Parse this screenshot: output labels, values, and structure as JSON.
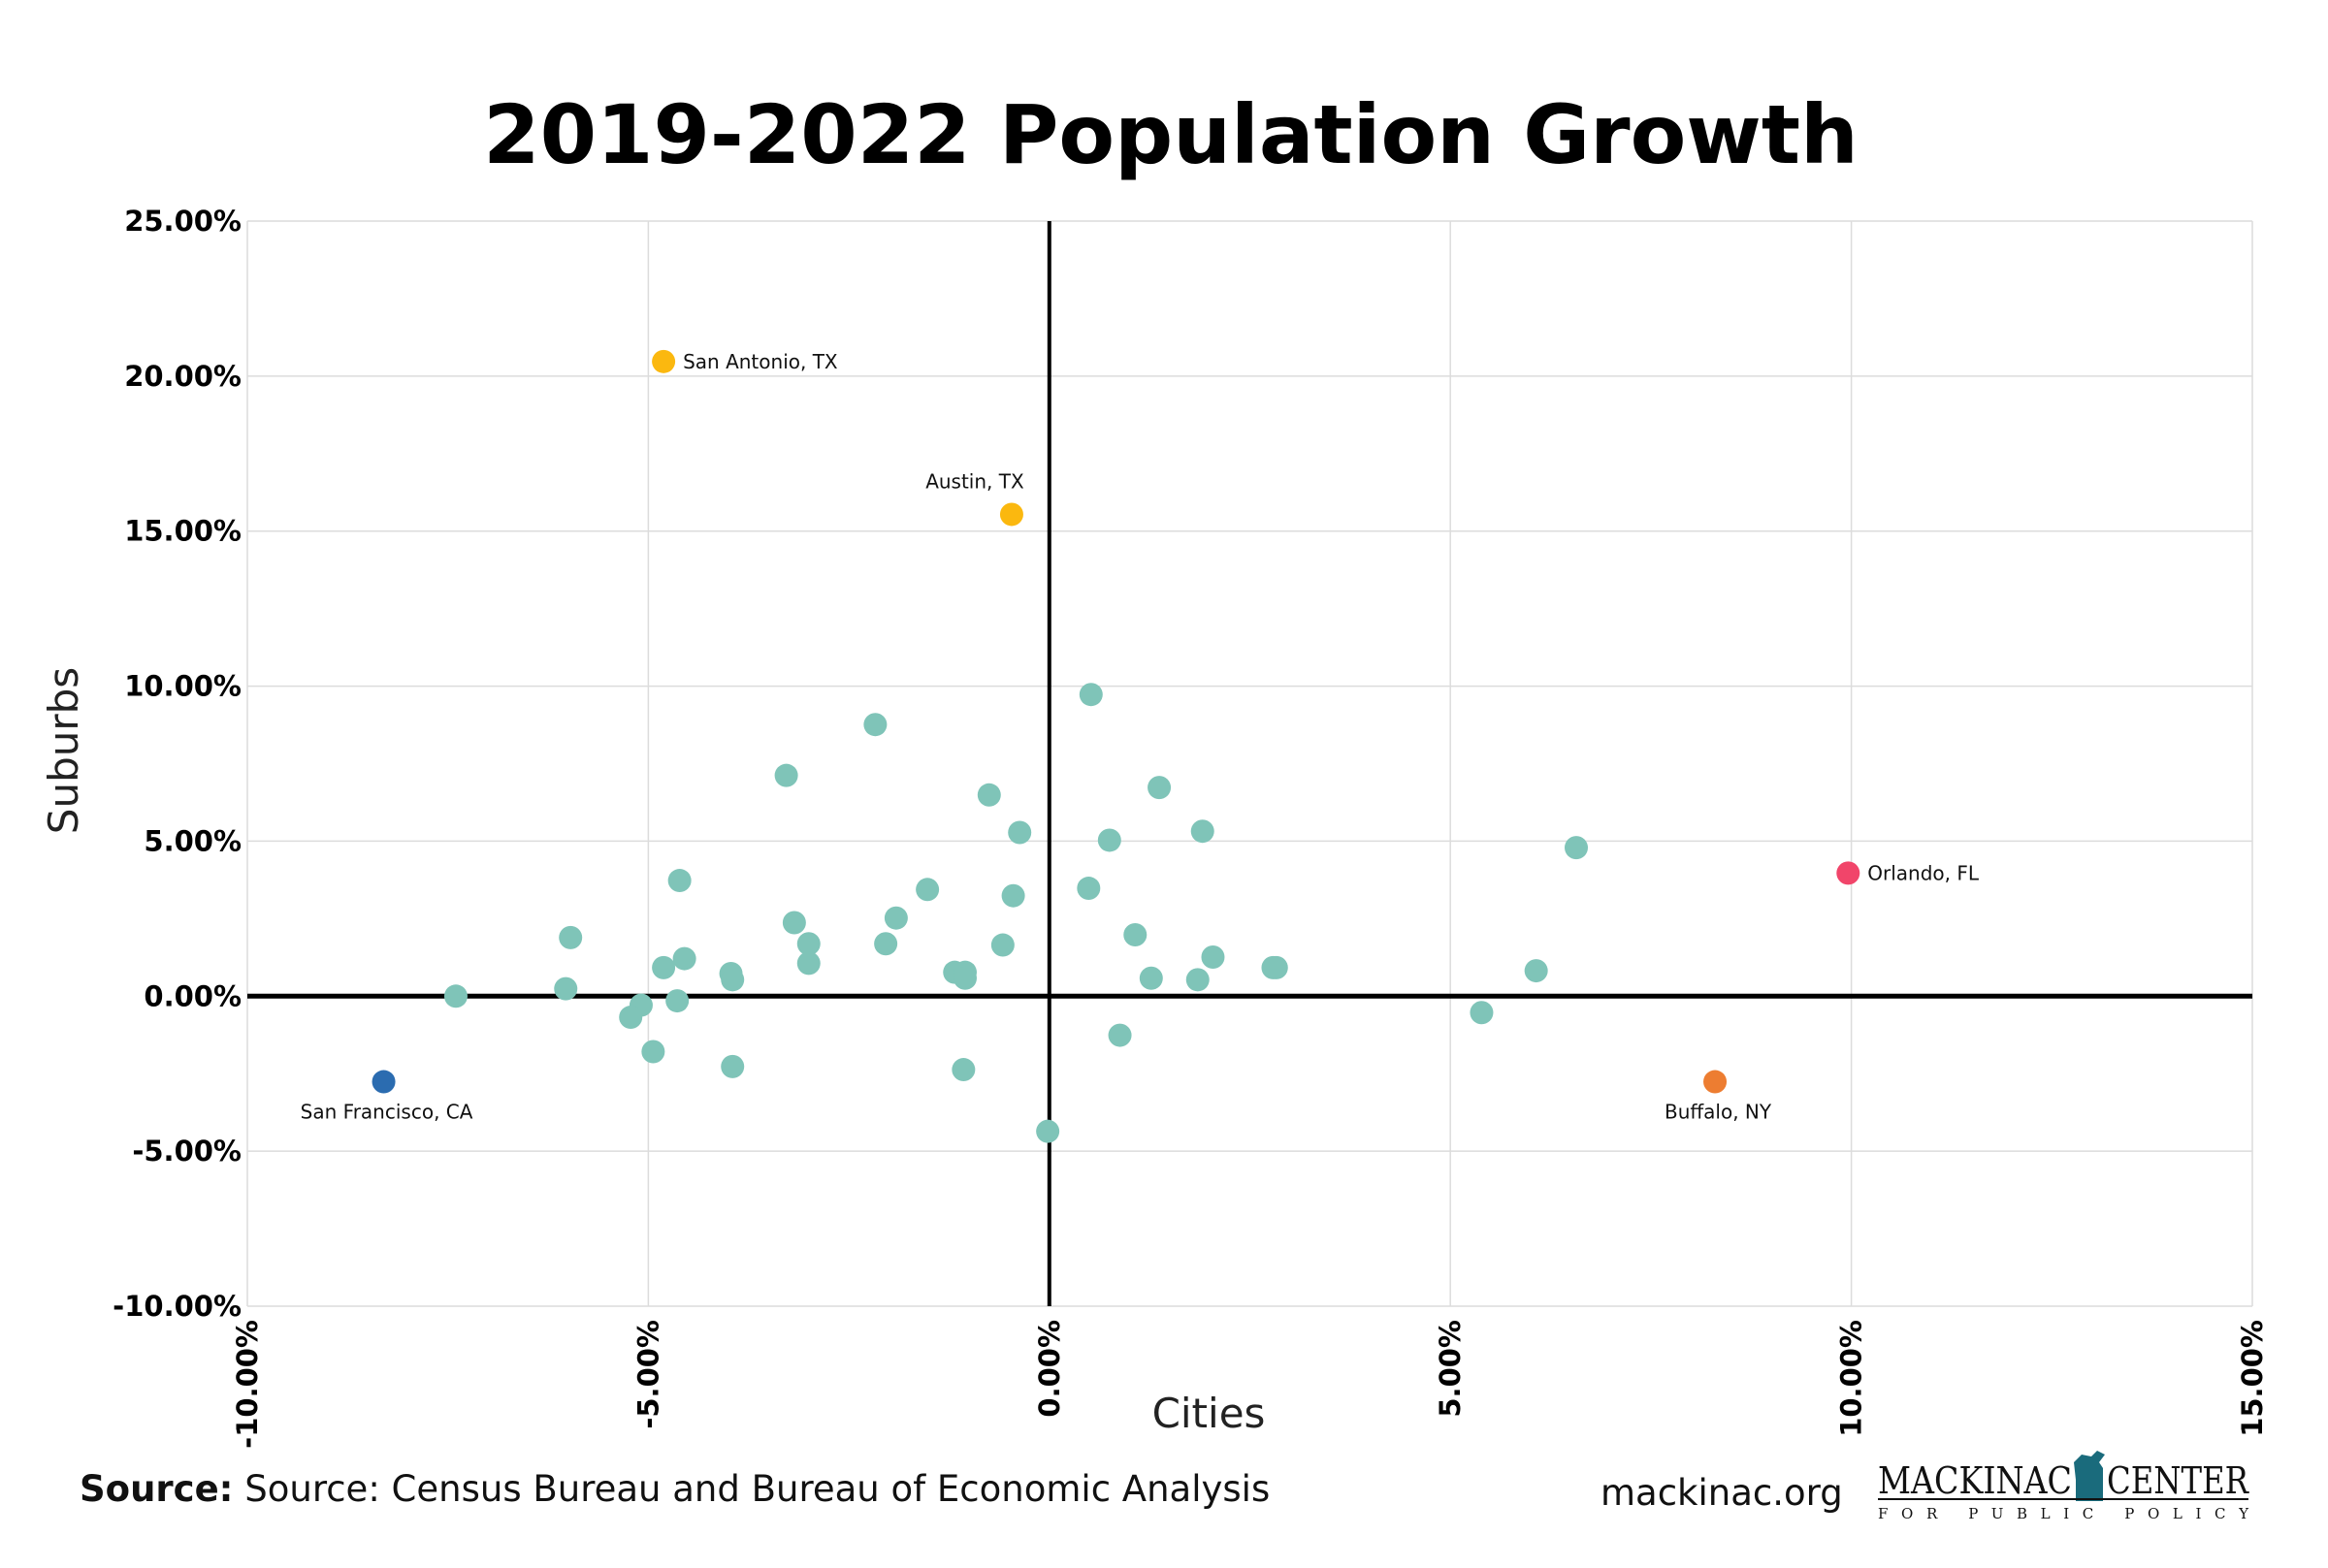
{
  "chart_data": {
    "type": "scatter",
    "title": "2019-2022 Population Growth",
    "xlabel": "Cities",
    "ylabel": "Suburbs",
    "xlim": [
      -10,
      15
    ],
    "ylim": [
      -10,
      25
    ],
    "grid": true,
    "x_ticks": [
      "-10.00%",
      "-5.00%",
      "0.00%",
      "5.00%",
      "10.00%",
      "15.00%"
    ],
    "x_tick_values": [
      -10,
      -5,
      0,
      5,
      10,
      15
    ],
    "y_ticks": [
      "25.00%",
      "20.00%",
      "15.00%",
      "10.00%",
      "5.00%",
      "0.00%",
      "-5.00%",
      "-10.00%"
    ],
    "y_tick_values": [
      25,
      20,
      15,
      10,
      5,
      0,
      -5,
      -10
    ],
    "default_color": "#7fc4b8",
    "labeled_points": [
      {
        "label": "San Antonio, TX",
        "x": -4.81,
        "y": 20.47,
        "color": "#fbb80f",
        "label_pos": "right"
      },
      {
        "label": "Austin, TX",
        "x": -0.47,
        "y": 15.54,
        "color": "#fbb80f",
        "label_pos": "above"
      },
      {
        "label": "San Francisco, CA",
        "x": -8.3,
        "y": -2.76,
        "color": "#2b6cb0",
        "label_pos": "below"
      },
      {
        "label": "Orlando, FL",
        "x": 9.96,
        "y": 3.97,
        "color": "#f1456a",
        "label_pos": "right"
      },
      {
        "label": "Buffalo, NY",
        "x": 8.3,
        "y": -2.76,
        "color": "#ed7d31",
        "label_pos": "below"
      }
    ],
    "points": [
      [
        0.52,
        9.73
      ],
      [
        -2.17,
        8.76
      ],
      [
        -3.28,
        7.12
      ],
      [
        -0.75,
        6.49
      ],
      [
        1.37,
        6.73
      ],
      [
        -0.37,
        5.28
      ],
      [
        0.75,
        5.03
      ],
      [
        1.91,
        5.32
      ],
      [
        6.57,
        4.79
      ],
      [
        -4.61,
        3.73
      ],
      [
        -1.52,
        3.44
      ],
      [
        0.49,
        3.48
      ],
      [
        -0.45,
        3.24
      ],
      [
        -3.18,
        2.37
      ],
      [
        -1.91,
        2.52
      ],
      [
        -5.97,
        1.89
      ],
      [
        -3.0,
        1.69
      ],
      [
        -2.04,
        1.69
      ],
      [
        -0.58,
        1.65
      ],
      [
        1.07,
        1.98
      ],
      [
        2.04,
        1.26
      ],
      [
        -4.55,
        1.21
      ],
      [
        -3.0,
        1.06
      ],
      [
        -4.81,
        0.92
      ],
      [
        -3.97,
        0.73
      ],
      [
        -3.95,
        0.53
      ],
      [
        -1.18,
        0.77
      ],
      [
        -1.05,
        0.77
      ],
      [
        -1.05,
        0.58
      ],
      [
        1.27,
        0.58
      ],
      [
        1.85,
        0.53
      ],
      [
        2.79,
        0.92
      ],
      [
        2.83,
        0.92
      ],
      [
        6.07,
        0.82
      ],
      [
        -6.03,
        0.24
      ],
      [
        -7.4,
        0.0
      ],
      [
        -4.64,
        -0.15
      ],
      [
        -5.09,
        -0.29
      ],
      [
        -5.22,
        -0.68
      ],
      [
        5.39,
        -0.53
      ],
      [
        0.88,
        -1.26
      ],
      [
        -4.94,
        -1.79
      ],
      [
        -3.95,
        -2.27
      ],
      [
        -1.07,
        -2.37
      ],
      [
        -0.02,
        -4.36
      ]
    ]
  },
  "footer": {
    "source_bold": "Source:",
    "source_text": " Source: Census Bureau and Bureau of Economic Analysis",
    "website": "mackinac.org",
    "logo_main_left": "MACKINAC",
    "logo_main_right": "CENTER",
    "logo_sub": "FOR PUBLIC POLICY"
  }
}
